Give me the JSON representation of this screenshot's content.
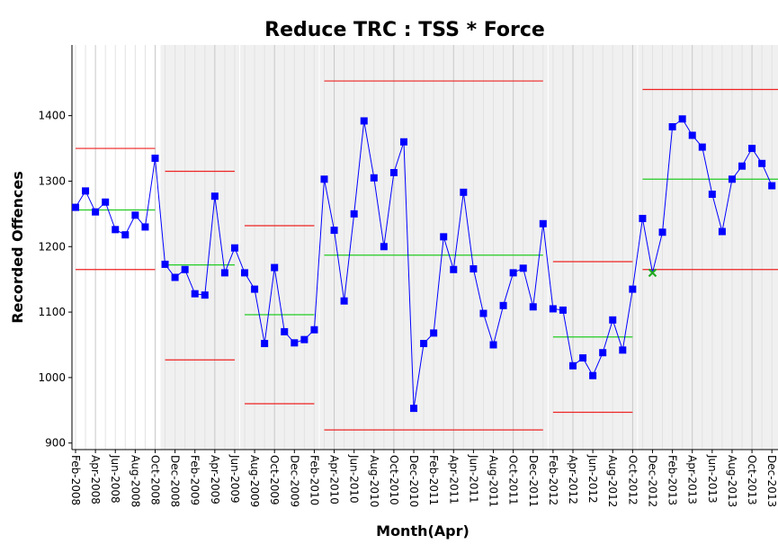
{
  "chart_data": {
    "type": "control",
    "title": "Reduce TRC : TSS * Force",
    "x_label": "Month(Apr)",
    "y_label": "Recorded Offences",
    "categories": [
      "Feb-2008",
      null,
      "Apr-2008",
      null,
      "Jun-2008",
      null,
      "Aug-2008",
      null,
      "Oct-2008",
      null,
      "Dec-2008",
      null,
      "Feb-2009",
      null,
      "Apr-2009",
      null,
      "Jun-2009",
      null,
      "Aug-2009",
      null,
      "Oct-2009",
      null,
      "Dec-2009",
      null,
      "Feb-2010",
      null,
      "Apr-2010",
      null,
      "Jun-2010",
      null,
      "Aug-2010",
      null,
      "Oct-2010",
      null,
      "Dec-2010",
      null,
      "Feb-2011",
      null,
      "Apr-2011",
      null,
      "Jun-2011",
      null,
      "Aug-2011",
      null,
      "Oct-2011",
      null,
      "Dec-2011",
      null,
      "Feb-2012",
      null,
      "Apr-2012",
      null,
      "Jun-2012",
      null,
      "Aug-2012",
      null,
      "Oct-2012",
      null,
      "Dec-2012",
      null,
      "Feb-2013",
      null,
      "Apr-2013",
      null,
      "Jun-2013",
      null,
      "Aug-2013",
      null,
      "Oct-2013",
      null,
      "Dec-2013"
    ],
    "values": [
      1260,
      1285,
      1253,
      1268,
      1226,
      1218,
      1248,
      1230,
      1335,
      1173,
      1153,
      1165,
      1128,
      1126,
      1277,
      1160,
      1198,
      1160,
      1135,
      1052,
      1168,
      1070,
      1053,
      1058,
      1073,
      1303,
      1225,
      1117,
      1250,
      1392,
      1305,
      1200,
      1313,
      1360,
      953,
      1052,
      1068,
      1215,
      1165,
      1283,
      1166,
      1098,
      1050,
      1110,
      1160,
      1167,
      1108,
      1235,
      1105,
      1103,
      1018,
      1030,
      1003,
      1038,
      1088,
      1042,
      1135,
      1243,
      1160,
      1222,
      1383,
      1395,
      1370,
      1352,
      1280,
      1223,
      1303,
      1323,
      1350,
      1327,
      1293
    ],
    "color": "#0000ff",
    "highlight": {
      "index": 58,
      "color": "#22aa22"
    },
    "phases": [
      {
        "start": 0,
        "end": 8,
        "mean": 1256,
        "ucl": 1350,
        "lcl": 1165,
        "shaded": false
      },
      {
        "start": 9,
        "end": 16,
        "mean": 1172,
        "ucl": 1315,
        "lcl": 1027,
        "shaded": true
      },
      {
        "start": 17,
        "end": 24,
        "mean": 1096,
        "ucl": 1232,
        "lcl": 960,
        "shaded": true
      },
      {
        "start": 25,
        "end": 47,
        "mean": 1187,
        "ucl": 1453,
        "lcl": 920,
        "shaded": true
      },
      {
        "start": 48,
        "end": 56,
        "mean": 1062,
        "ucl": 1177,
        "lcl": 947,
        "shaded": true
      },
      {
        "start": 57,
        "end": 70,
        "mean": 1303,
        "ucl": 1440,
        "lcl": 1165,
        "shaded": true
      }
    ],
    "mean_color": "#22cc22",
    "limit_color": "#ee2222",
    "ylim": [
      890,
      1508
    ],
    "yticks": [
      900,
      1000,
      1100,
      1200,
      1300,
      1400
    ],
    "grid": true
  }
}
